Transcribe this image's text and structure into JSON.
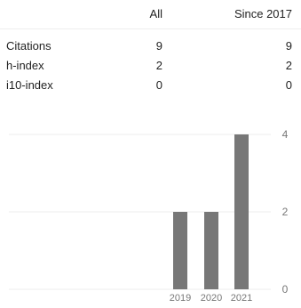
{
  "header": {
    "all_label": "All",
    "since_label": "Since 2017"
  },
  "metrics": [
    {
      "label": "Citations",
      "all": "9",
      "since": "9"
    },
    {
      "label": "h-index",
      "all": "2",
      "since": "2"
    },
    {
      "label": "i10-index",
      "all": "0",
      "since": "0"
    }
  ],
  "chart_data": {
    "type": "bar",
    "categories": [
      "2019",
      "2020",
      "2021"
    ],
    "values": [
      2,
      2,
      4
    ],
    "ylim": [
      0,
      4
    ],
    "yticks": [
      "0",
      "2",
      "4"
    ],
    "title": "",
    "xlabel": "",
    "ylabel": "",
    "grid": true,
    "bar_color": "#777777",
    "grid_color": "#eeeeee",
    "tick_color": "#777777"
  }
}
